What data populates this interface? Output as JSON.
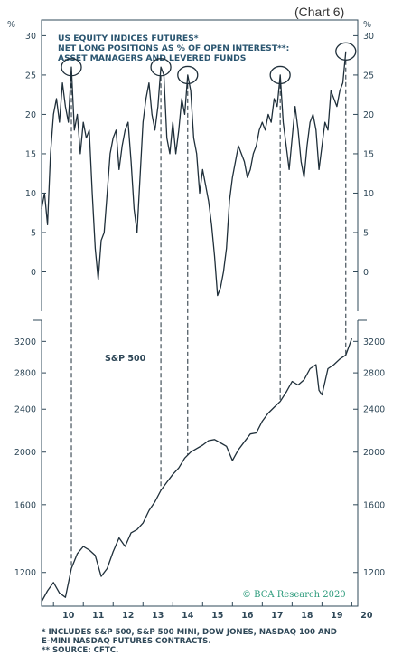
{
  "chart_label": "(Chart 6)",
  "brand": "© BCA Research 2020",
  "footnotes": [
    "* INCLUDES S&P 500, S&P 500 MINI, DOW JONES, NASDAQ 100 AND",
    "E-MINI NASDAQ FUTURES CONTRACTS.",
    "** SOURCE: CFTC."
  ],
  "chart_data": [
    {
      "type": "line",
      "title": [
        "US EQUITY INDICES FUTURES*",
        "NET LONG POSITIONS AS % OF OPEN INTEREST**:",
        "ASSET MANAGERS AND LEVERED FUNDS"
      ],
      "unit_label": "%",
      "ylim": [
        -5,
        32
      ],
      "yticks": [
        0,
        5,
        10,
        15,
        20,
        25,
        30
      ],
      "xlim": [
        2009.6,
        2020.2
      ],
      "peaks_circled": [
        2010.6,
        2013.6,
        2014.5,
        2017.6,
        2019.8
      ],
      "series": [
        {
          "x": [
            2009.6,
            2009.7,
            2009.8,
            2009.9,
            2010.0,
            2010.1,
            2010.2,
            2010.3,
            2010.4,
            2010.5,
            2010.6,
            2010.7,
            2010.8,
            2010.9,
            2011.0,
            2011.1,
            2011.2,
            2011.3,
            2011.4,
            2011.5,
            2011.6,
            2011.7,
            2011.8,
            2011.9,
            2012.0,
            2012.1,
            2012.2,
            2012.3,
            2012.4,
            2012.5,
            2012.6,
            2012.7,
            2012.8,
            2012.9,
            2013.0,
            2013.1,
            2013.2,
            2013.3,
            2013.4,
            2013.5,
            2013.6,
            2013.7,
            2013.8,
            2013.9,
            2014.0,
            2014.1,
            2014.2,
            2014.3,
            2014.4,
            2014.5,
            2014.6,
            2014.7,
            2014.8,
            2014.9,
            2015.0,
            2015.1,
            2015.2,
            2015.3,
            2015.4,
            2015.5,
            2015.6,
            2015.7,
            2015.8,
            2015.9,
            2016.0,
            2016.1,
            2016.2,
            2016.3,
            2016.4,
            2016.5,
            2016.6,
            2016.7,
            2016.8,
            2016.9,
            2017.0,
            2017.1,
            2017.2,
            2017.3,
            2017.4,
            2017.5,
            2017.6,
            2017.7,
            2017.8,
            2017.9,
            2018.0,
            2018.1,
            2018.2,
            2018.3,
            2018.4,
            2018.5,
            2018.6,
            2018.7,
            2018.8,
            2018.9,
            2019.0,
            2019.1,
            2019.2,
            2019.3,
            2019.4,
            2019.5,
            2019.6,
            2019.7,
            2019.8
          ],
          "values": [
            8,
            10,
            6,
            15,
            20,
            22,
            19,
            24,
            21,
            19,
            26,
            18,
            20,
            15,
            19,
            17,
            18,
            10,
            3,
            -1,
            4,
            5,
            10,
            15,
            17,
            18,
            13,
            16,
            18,
            19,
            14,
            8,
            5,
            12,
            19,
            22,
            24,
            20,
            18,
            21,
            26,
            25,
            17,
            15,
            19,
            15,
            18,
            22,
            20,
            25,
            23,
            17,
            15,
            10,
            13,
            11,
            9,
            6,
            2,
            -3,
            -2,
            0,
            3,
            9,
            12,
            14,
            16,
            15,
            14,
            12,
            13,
            15,
            16,
            18,
            19,
            18,
            20,
            19,
            22,
            21,
            25,
            19,
            16,
            13,
            17,
            21,
            18,
            14,
            12,
            16,
            19,
            20,
            18,
            13,
            16,
            19,
            18,
            23,
            22,
            21,
            23,
            24,
            28
          ]
        }
      ]
    },
    {
      "type": "line",
      "series_label": "S&P 500",
      "scale": "log",
      "ylim": [
        1040,
        3500
      ],
      "yticks": [
        1200,
        1600,
        2000,
        2400,
        2800,
        3200
      ],
      "xlim": [
        2009.6,
        2020.2
      ],
      "xticks": [
        "10",
        "11",
        "12",
        "13",
        "14",
        "15",
        "16",
        "17",
        "18",
        "19",
        "20"
      ],
      "series": [
        {
          "x": [
            2009.6,
            2009.8,
            2010.0,
            2010.2,
            2010.4,
            2010.6,
            2010.8,
            2011.0,
            2011.2,
            2011.4,
            2011.6,
            2011.8,
            2012.0,
            2012.2,
            2012.4,
            2012.6,
            2012.8,
            2013.0,
            2013.2,
            2013.4,
            2013.6,
            2013.8,
            2014.0,
            2014.2,
            2014.4,
            2014.6,
            2014.8,
            2015.0,
            2015.2,
            2015.4,
            2015.6,
            2015.8,
            2016.0,
            2016.2,
            2016.4,
            2016.6,
            2016.8,
            2017.0,
            2017.2,
            2017.4,
            2017.6,
            2017.8,
            2018.0,
            2018.2,
            2018.4,
            2018.6,
            2018.8,
            2018.9,
            2019.0,
            2019.2,
            2019.4,
            2019.6,
            2019.8,
            2020.0
          ],
          "values": [
            1060,
            1110,
            1150,
            1100,
            1080,
            1220,
            1300,
            1340,
            1320,
            1290,
            1180,
            1220,
            1310,
            1390,
            1340,
            1420,
            1440,
            1480,
            1560,
            1620,
            1700,
            1760,
            1820,
            1870,
            1950,
            2000,
            2030,
            2060,
            2100,
            2110,
            2080,
            2050,
            1930,
            2020,
            2090,
            2160,
            2170,
            2280,
            2360,
            2420,
            2480,
            2580,
            2700,
            2660,
            2720,
            2850,
            2900,
            2600,
            2550,
            2850,
            2900,
            2970,
            3020,
            3240
          ]
        }
      ]
    }
  ]
}
